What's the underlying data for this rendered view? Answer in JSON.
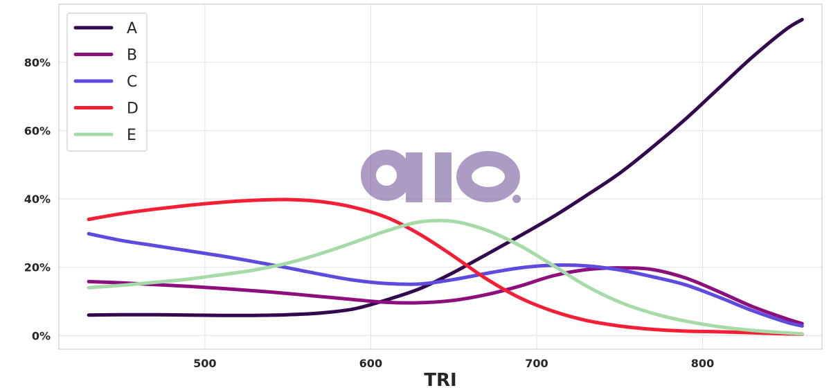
{
  "chart_data": {
    "type": "line",
    "xlabel": "TRI",
    "ylabel": "",
    "xlim": [
      412,
      872
    ],
    "ylim": [
      -4,
      97
    ],
    "xticks": [
      500,
      600,
      700,
      800
    ],
    "yticks": [
      0,
      20,
      40,
      60,
      80
    ],
    "ytick_format": "percent",
    "grid": true,
    "legend_position": "top-left",
    "watermark_text": "aio.",
    "x": [
      430,
      450,
      470,
      490,
      510,
      530,
      550,
      570,
      590,
      610,
      630,
      650,
      670,
      690,
      710,
      730,
      750,
      770,
      790,
      810,
      830,
      850,
      860
    ],
    "series": [
      {
        "name": "A",
        "color": "#32084f",
        "values": [
          6.0,
          6.1,
          6.1,
          6.0,
          5.9,
          5.9,
          6.1,
          6.6,
          7.8,
          10.5,
          13.8,
          18.5,
          23.8,
          29.2,
          34.8,
          41.0,
          47.5,
          55.2,
          63.5,
          72.5,
          81.5,
          89.5,
          92.5
        ]
      },
      {
        "name": "B",
        "color": "#8c0f7b",
        "values": [
          15.8,
          15.4,
          14.9,
          14.4,
          13.8,
          13.1,
          12.3,
          11.4,
          10.5,
          9.7,
          9.6,
          10.3,
          12.0,
          14.5,
          17.5,
          19.3,
          19.8,
          19.3,
          16.8,
          12.8,
          8.5,
          5.0,
          3.5
        ]
      },
      {
        "name": "C",
        "color": "#5c4bdc",
        "values": [
          29.8,
          27.8,
          26.3,
          24.8,
          23.3,
          21.6,
          19.8,
          17.9,
          16.2,
          15.2,
          15.1,
          16.4,
          18.2,
          19.8,
          20.6,
          20.4,
          19.2,
          17.2,
          14.8,
          11.2,
          7.3,
          4.0,
          2.8
        ]
      },
      {
        "name": "D",
        "color": "#f51f35",
        "values": [
          34.0,
          35.7,
          37.0,
          38.1,
          39.0,
          39.6,
          39.8,
          39.2,
          37.5,
          34.5,
          29.5,
          23.2,
          16.5,
          11.0,
          7.1,
          4.4,
          2.8,
          1.8,
          1.3,
          1.1,
          0.8,
          0.5,
          0.4
        ]
      },
      {
        "name": "E",
        "color": "#a6dba8",
        "values": [
          14.0,
          14.7,
          15.6,
          16.5,
          17.8,
          19.2,
          21.2,
          24.0,
          27.3,
          30.7,
          33.3,
          33.4,
          30.8,
          26.3,
          20.5,
          14.5,
          9.8,
          6.5,
          4.2,
          2.6,
          1.5,
          0.8,
          0.5
        ]
      }
    ]
  }
}
